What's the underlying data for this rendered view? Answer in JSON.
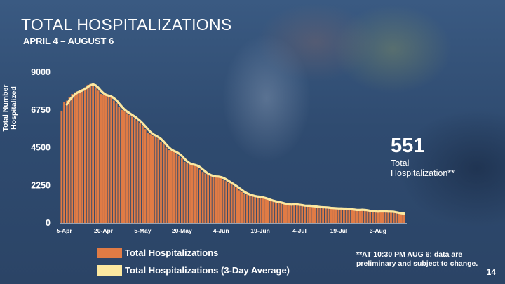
{
  "slide": {
    "title": "TOTAL HOSPITALIZATIONS",
    "subtitle": "APRIL 4 – AUGUST 6",
    "page_number": "14",
    "background_color": "#2e4a6e"
  },
  "summary": {
    "value": "551",
    "label": "Total Hospitalization**"
  },
  "legend": [
    {
      "label": "Total Hospitalizations",
      "color": "#e07b45"
    },
    {
      "label": "Total Hospitalizations (3-Day Average)",
      "color": "#fce8a0"
    }
  ],
  "note": "**AT 10:30 PM AUG 6: data are preliminary and subject to change.",
  "chart_data": {
    "type": "bar",
    "ylabel": "Total Number Hospitalized",
    "xlabel": "",
    "ylim": [
      0,
      9000
    ],
    "yticks": [
      0,
      2250,
      4500,
      6750,
      9000
    ],
    "xticks": [
      "5-Apr",
      "20-Apr",
      "5-May",
      "20-May",
      "4-Jun",
      "19-Jun",
      "4-Jul",
      "19-Jul",
      "3-Aug"
    ],
    "grid": false,
    "legend_position": "bottom",
    "start_date": "4-Apr",
    "end_date": "6-Aug",
    "bar_color": "#e07b45",
    "average_color": "#fce8a0",
    "series": [
      {
        "name": "Total Hospitalizations",
        "type": "bar",
        "values": [
          6700,
          7200,
          7300,
          7500,
          7700,
          7800,
          7850,
          7900,
          8000,
          8100,
          8250,
          8300,
          8250,
          8100,
          7900,
          7700,
          7650,
          7600,
          7550,
          7500,
          7300,
          7150,
          6950,
          6750,
          6650,
          6550,
          6450,
          6350,
          6250,
          6100,
          5950,
          5800,
          5600,
          5400,
          5300,
          5200,
          5150,
          5050,
          4850,
          4700,
          4500,
          4350,
          4300,
          4250,
          4150,
          4000,
          3850,
          3650,
          3550,
          3500,
          3450,
          3450,
          3350,
          3200,
          3050,
          2950,
          2850,
          2800,
          2780,
          2760,
          2770,
          2700,
          2600,
          2500,
          2400,
          2300,
          2200,
          2100,
          1950,
          1850,
          1750,
          1700,
          1650,
          1600,
          1570,
          1560,
          1540,
          1500,
          1440,
          1380,
          1330,
          1290,
          1260,
          1230,
          1180,
          1130,
          1110,
          1100,
          1110,
          1120,
          1100,
          1060,
          1040,
          1030,
          1030,
          1020,
          990,
          970,
          950,
          940,
          930,
          920,
          900,
          890,
          880,
          870,
          860,
          870,
          860,
          840,
          820,
          800,
          780,
          770,
          790,
          800,
          760,
          720,
          700,
          690,
          680,
          690,
          700,
          690,
          680,
          680,
          670,
          660,
          600,
          560,
          570,
          551
        ]
      },
      {
        "name": "Total Hospitalizations (3-Day Average)",
        "type": "line",
        "values": [
          null,
          null,
          7070,
          7330,
          7500,
          7670,
          7780,
          7850,
          7920,
          8000,
          8120,
          8220,
          8270,
          8220,
          8080,
          7900,
          7750,
          7650,
          7600,
          7550,
          7450,
          7320,
          7130,
          6950,
          6780,
          6650,
          6550,
          6450,
          6350,
          6230,
          6100,
          5950,
          5780,
          5600,
          5430,
          5300,
          5220,
          5130,
          5020,
          4870,
          4680,
          4520,
          4380,
          4300,
          4230,
          4130,
          4000,
          3830,
          3680,
          3570,
          3500,
          3470,
          3420,
          3330,
          3200,
          3070,
          2950,
          2870,
          2810,
          2780,
          2770,
          2740,
          2690,
          2600,
          2500,
          2400,
          2300,
          2200,
          2080,
          1970,
          1850,
          1770,
          1700,
          1650,
          1610,
          1580,
          1560,
          1530,
          1490,
          1440,
          1380,
          1330,
          1290,
          1260,
          1220,
          1180,
          1140,
          1110,
          1100,
          1110,
          1110,
          1090,
          1070,
          1040,
          1030,
          1030,
          1010,
          990,
          970,
          950,
          940,
          930,
          920,
          900,
          890,
          880,
          870,
          870,
          860,
          860,
          840,
          820,
          800,
          780,
          780,
          790,
          780,
          760,
          730,
          700,
          690,
          680,
          690,
          690,
          690,
          680,
          680,
          670,
          640,
          610,
          580,
          560
        ]
      }
    ]
  }
}
